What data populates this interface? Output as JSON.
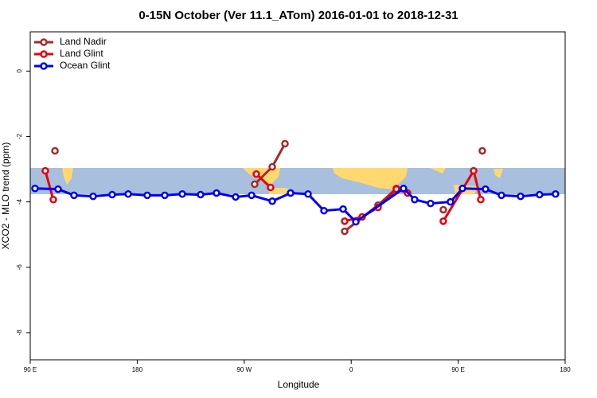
{
  "chart_data": {
    "type": "line",
    "title": "0-15N October (Ver 11.1_ATom)   2016-01-01 to 2018-12-31",
    "x_label": "Longitude",
    "y_label": "XCO2 - MLO trend (ppm)",
    "xlim": [
      90,
      540
    ],
    "xticks": [
      {
        "value": 90,
        "label": "90 E"
      },
      180,
      {
        "value": 270,
        "label": "90 W"
      },
      {
        "value": 360,
        "label": "0"
      },
      {
        "value": 450,
        "label": "90 E"
      },
      {
        "value": 540,
        "label": "180"
      }
    ],
    "ylim": [
      -8.83,
      1.2
    ],
    "yticks": [
      0,
      -2,
      -4,
      -6,
      -8
    ],
    "legend": "top-left",
    "series": [
      {
        "name": "Land Nadir",
        "color": "#a52a2a",
        "x": [
          110.8,
          null,
          278.8,
          293.6,
          304.3,
          null,
          354.5,
          382.6,
          398,
          null,
          437.5,
          null,
          470.3
        ],
        "values": [
          -2.44,
          null,
          -3.46,
          -2.93,
          -2.22,
          null,
          -4.9,
          -4.1,
          -3.59,
          null,
          -4.24,
          null,
          -2.44
        ]
      },
      {
        "name": "Land Glint",
        "color": "#e8000b",
        "x": [
          102.7,
          109.4,
          null,
          280.2,
          292.2,
          null,
          354.5,
          369.2,
          382.6,
          398,
          407.4,
          null,
          437.5,
          463,
          469
        ],
        "values": [
          -3.05,
          -3.93,
          null,
          -3.15,
          -3.56,
          null,
          -4.59,
          -4.46,
          -4.17,
          -3.61,
          -3.73,
          null,
          -4.59,
          -3.05,
          -3.93
        ]
      },
      {
        "name": "Ocean Glint",
        "color": "#0000f0",
        "x": [
          94,
          113.4,
          126.8,
          142.9,
          158.9,
          172.4,
          188.4,
          203.2,
          217.9,
          233.3,
          246.7,
          262.8,
          276.2,
          293.6,
          309,
          323.7,
          337.1,
          353.2,
          363.9,
          404,
          413.4,
          426.8,
          443.5,
          453.6,
          473,
          486.4,
          502.5,
          518.5,
          531.9
        ],
        "values": [
          -3.59,
          -3.61,
          -3.8,
          -3.83,
          -3.78,
          -3.76,
          -3.8,
          -3.8,
          -3.76,
          -3.78,
          -3.73,
          -3.85,
          -3.8,
          -3.98,
          -3.73,
          -3.76,
          -4.27,
          -4.22,
          -4.61,
          -3.59,
          -3.93,
          -4.05,
          -4.0,
          -3.59,
          -3.61,
          -3.8,
          -3.83,
          -3.78,
          -3.76
        ]
      }
    ]
  }
}
